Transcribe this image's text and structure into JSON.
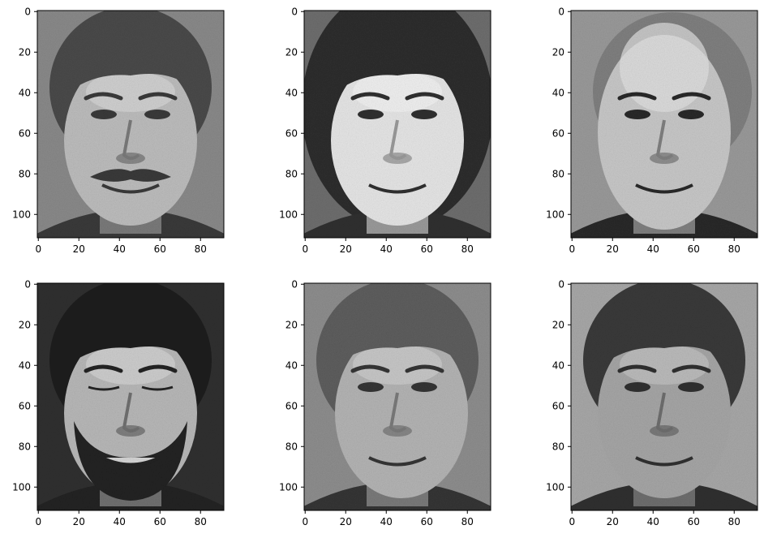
{
  "figure": {
    "background": "#ffffff",
    "panels": [
      {
        "id": "face-1",
        "subject": "middle-aged man with mustache and receding hair",
        "tones": {
          "bg": "#8a8a8a",
          "hair": "#4a4a4a",
          "skin": "#bdbdbd",
          "shade": "#7a7a7a",
          "dark": "#3a3a3a",
          "light": "#d8d8d8"
        },
        "features": {
          "mustache": true,
          "beard": false,
          "bald": false,
          "eyes_closed": false,
          "long_hair": false
        }
      },
      {
        "id": "face-2",
        "subject": "young woman with dark hair, smiling",
        "tones": {
          "bg": "#6e6e6e",
          "hair": "#2e2e2e",
          "skin": "#e6e6e6",
          "shade": "#9a9a9a",
          "dark": "#303030",
          "light": "#f4f4f4"
        },
        "features": {
          "mustache": false,
          "beard": false,
          "bald": false,
          "eyes_closed": false,
          "long_hair": true
        }
      },
      {
        "id": "face-3",
        "subject": "balding man, smiling",
        "tones": {
          "bg": "#9a9a9a",
          "hair": "#5a5a5a",
          "skin": "#c8c8c8",
          "shade": "#808080",
          "dark": "#2a2a2a",
          "light": "#e2e2e2"
        },
        "features": {
          "mustache": false,
          "beard": false,
          "bald": true,
          "eyes_closed": false,
          "long_hair": false
        }
      },
      {
        "id": "face-4",
        "subject": "young man with dark hair and beard, eyes closed",
        "tones": {
          "bg": "#303030",
          "hair": "#1e1e1e",
          "skin": "#b8b8b8",
          "shade": "#707070",
          "dark": "#222222",
          "light": "#d6d6d6"
        },
        "features": {
          "mustache": false,
          "beard": true,
          "bald": false,
          "eyes_closed": true,
          "long_hair": false
        }
      },
      {
        "id": "face-5",
        "subject": "young man, looking down, smiling",
        "tones": {
          "bg": "#8e8e8e",
          "hair": "#5e5e5e",
          "skin": "#b4b4b4",
          "shade": "#7a7a7a",
          "dark": "#353535",
          "light": "#cfcfcf"
        },
        "features": {
          "mustache": false,
          "beard": false,
          "bald": false,
          "eyes_closed": false,
          "long_hair": false
        }
      },
      {
        "id": "face-6",
        "subject": "young man with dark hair",
        "tones": {
          "bg": "#a8a8a8",
          "hair": "#3a3a3a",
          "skin": "#a6a6a6",
          "shade": "#6e6e6e",
          "dark": "#303030",
          "light": "#c4c4c4"
        },
        "features": {
          "mustache": false,
          "beard": false,
          "bald": false,
          "eyes_closed": false,
          "long_hair": false
        }
      }
    ],
    "axes": {
      "x_ticks": [
        "0",
        "20",
        "40",
        "60",
        "80"
      ],
      "y_ticks": [
        "0",
        "20",
        "40",
        "60",
        "80",
        "100"
      ]
    }
  }
}
